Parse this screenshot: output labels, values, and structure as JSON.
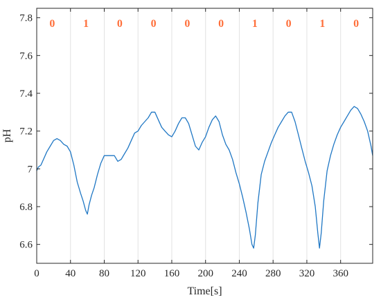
{
  "chart_data": {
    "type": "line",
    "title": "",
    "xlabel": "Time[s]",
    "ylabel": "pH",
    "xlim": [
      0,
      398
    ],
    "ylim": [
      6.5,
      7.85
    ],
    "x_ticks": [
      0,
      40,
      80,
      120,
      160,
      200,
      240,
      280,
      320,
      360
    ],
    "y_ticks": [
      6.6,
      6.8,
      7,
      7.2,
      7.4,
      7.6,
      7.8
    ],
    "y_tick_labels": [
      "6.6",
      "6.8",
      "7",
      "7.2",
      "7.4",
      "7.6",
      "7.8"
    ],
    "segment_boundaries": [
      40,
      80,
      120,
      160,
      200,
      240,
      280,
      320,
      360
    ],
    "segment_labels": [
      "0",
      "1",
      "0",
      "0",
      "0",
      "0",
      "1",
      "0",
      "1",
      "0"
    ],
    "segment_label_color": "#ff6f3a",
    "line_color": "#1f77c4",
    "grid": "vertical-only",
    "series": [
      {
        "name": "",
        "x": [
          0,
          2,
          5,
          8,
          12,
          16,
          20,
          24,
          28,
          32,
          36,
          40,
          44,
          48,
          52,
          55,
          58,
          60,
          62,
          65,
          68,
          72,
          76,
          80,
          84,
          88,
          92,
          96,
          100,
          104,
          108,
          112,
          116,
          120,
          124,
          128,
          132,
          136,
          140,
          144,
          148,
          152,
          156,
          160,
          164,
          168,
          172,
          176,
          180,
          184,
          188,
          192,
          196,
          200,
          204,
          208,
          212,
          216,
          220,
          224,
          228,
          232,
          236,
          240,
          244,
          248,
          252,
          255,
          257,
          259,
          262,
          266,
          270,
          274,
          278,
          282,
          286,
          290,
          294,
          298,
          302,
          306,
          310,
          314,
          318,
          322,
          326,
          330,
          333,
          335,
          337,
          340,
          344,
          348,
          352,
          356,
          360,
          364,
          368,
          372,
          376,
          380,
          384,
          388,
          392,
          396,
          398
        ],
        "values": [
          6.99,
          7.01,
          7.02,
          7.05,
          7.09,
          7.12,
          7.15,
          7.16,
          7.15,
          7.13,
          7.12,
          7.09,
          7.02,
          6.93,
          6.87,
          6.83,
          6.78,
          6.76,
          6.81,
          6.86,
          6.9,
          6.97,
          7.03,
          7.07,
          7.07,
          7.07,
          7.07,
          7.04,
          7.05,
          7.08,
          7.11,
          7.15,
          7.19,
          7.2,
          7.23,
          7.25,
          7.27,
          7.3,
          7.3,
          7.26,
          7.22,
          7.2,
          7.18,
          7.17,
          7.2,
          7.24,
          7.27,
          7.27,
          7.24,
          7.18,
          7.12,
          7.1,
          7.14,
          7.17,
          7.22,
          7.26,
          7.28,
          7.25,
          7.18,
          7.13,
          7.1,
          7.05,
          6.98,
          6.92,
          6.85,
          6.77,
          6.68,
          6.6,
          6.58,
          6.65,
          6.82,
          6.97,
          7.04,
          7.09,
          7.14,
          7.18,
          7.22,
          7.25,
          7.28,
          7.3,
          7.3,
          7.25,
          7.18,
          7.11,
          7.04,
          6.98,
          6.91,
          6.8,
          6.66,
          6.58,
          6.66,
          6.83,
          6.99,
          7.07,
          7.13,
          7.18,
          7.22,
          7.25,
          7.28,
          7.31,
          7.33,
          7.32,
          7.29,
          7.25,
          7.2,
          7.12,
          7.07
        ]
      }
    ]
  }
}
